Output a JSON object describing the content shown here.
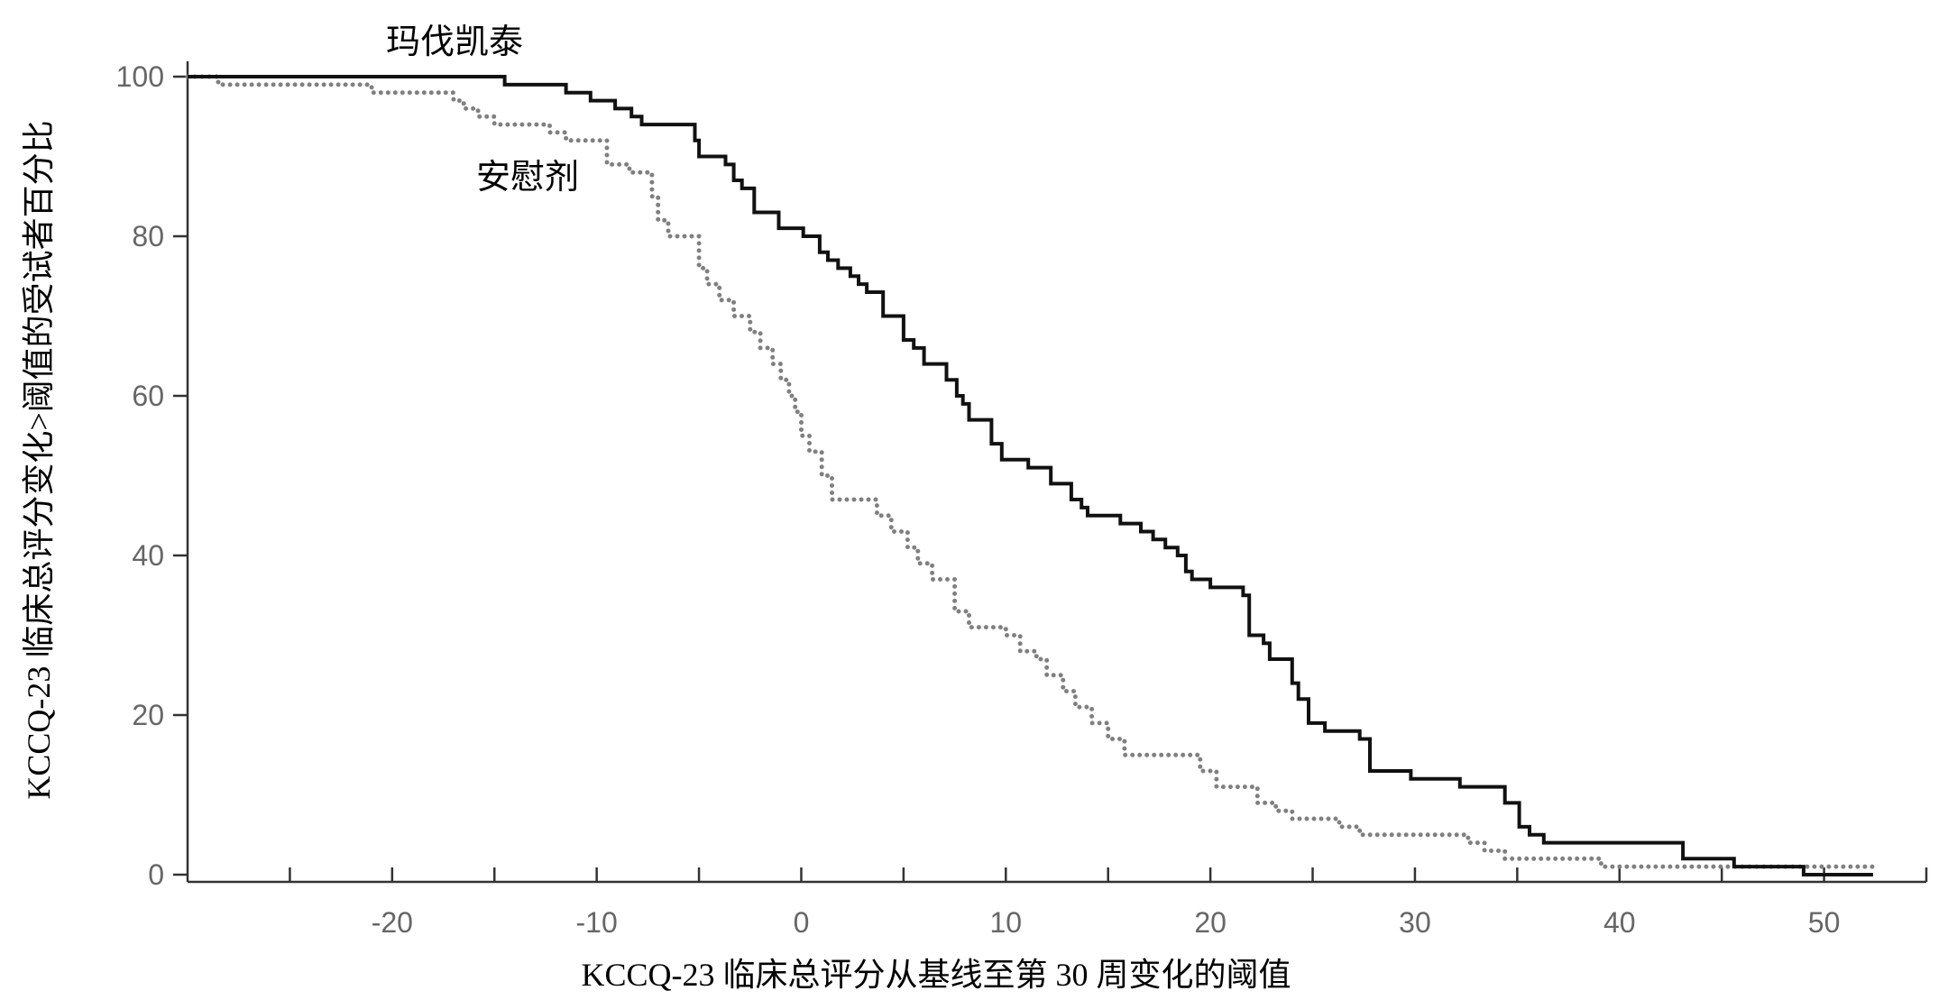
{
  "chart_data": {
    "type": "line",
    "step": true,
    "title": "",
    "xlabel": "KCCQ-23 临床总评分从基线至第 30 周变化的阈值",
    "ylabel": "KCCQ-23 临床总评分变化>阈值的受试者百分比",
    "xlim": [
      -30,
      55
    ],
    "ylim": [
      0,
      100
    ],
    "x_ticks": [
      -20,
      -10,
      0,
      10,
      20,
      30,
      40,
      50
    ],
    "x_minor_ticks": [
      -25,
      -15,
      -5,
      5,
      15,
      25,
      35,
      45,
      55
    ],
    "y_ticks": [
      0,
      20,
      40,
      60,
      80,
      100
    ],
    "grid": false,
    "legend": "none",
    "series": [
      {
        "name": "玛伐凯泰",
        "style": "solid",
        "color": "#111111",
        "points": [
          [
            -30,
            100
          ],
          [
            -14.5,
            100
          ],
          [
            -14.5,
            99
          ],
          [
            -11.5,
            99
          ],
          [
            -11.5,
            98
          ],
          [
            -10.3,
            98
          ],
          [
            -10.3,
            97
          ],
          [
            -9.1,
            97
          ],
          [
            -9.1,
            96
          ],
          [
            -8.3,
            96
          ],
          [
            -8.3,
            95
          ],
          [
            -7.8,
            95
          ],
          [
            -7.8,
            94
          ],
          [
            -5.2,
            94
          ],
          [
            -5.2,
            92
          ],
          [
            -5.0,
            92
          ],
          [
            -5.0,
            90
          ],
          [
            -3.7,
            90
          ],
          [
            -3.7,
            89
          ],
          [
            -3.3,
            89
          ],
          [
            -3.3,
            87
          ],
          [
            -2.9,
            87
          ],
          [
            -2.9,
            86
          ],
          [
            -2.3,
            86
          ],
          [
            -2.3,
            83
          ],
          [
            -1.1,
            83
          ],
          [
            -1.1,
            81
          ],
          [
            0.1,
            81
          ],
          [
            0.1,
            80
          ],
          [
            0.9,
            80
          ],
          [
            0.9,
            78
          ],
          [
            1.3,
            78
          ],
          [
            1.3,
            77
          ],
          [
            1.8,
            77
          ],
          [
            1.8,
            76
          ],
          [
            2.4,
            76
          ],
          [
            2.4,
            75
          ],
          [
            2.8,
            75
          ],
          [
            2.8,
            74
          ],
          [
            3.2,
            74
          ],
          [
            3.2,
            73
          ],
          [
            4.0,
            73
          ],
          [
            4.0,
            70
          ],
          [
            5.0,
            70
          ],
          [
            5.0,
            67
          ],
          [
            5.5,
            67
          ],
          [
            5.5,
            66
          ],
          [
            6.0,
            66
          ],
          [
            6.0,
            64
          ],
          [
            7.1,
            64
          ],
          [
            7.1,
            62
          ],
          [
            7.6,
            62
          ],
          [
            7.6,
            60
          ],
          [
            7.9,
            60
          ],
          [
            7.9,
            59
          ],
          [
            8.2,
            59
          ],
          [
            8.2,
            57
          ],
          [
            9.3,
            57
          ],
          [
            9.3,
            54
          ],
          [
            9.8,
            54
          ],
          [
            9.8,
            52
          ],
          [
            11.1,
            52
          ],
          [
            11.1,
            51
          ],
          [
            12.2,
            51
          ],
          [
            12.2,
            49
          ],
          [
            13.2,
            49
          ],
          [
            13.2,
            47
          ],
          [
            13.7,
            47
          ],
          [
            13.7,
            46
          ],
          [
            14.0,
            46
          ],
          [
            14.0,
            45
          ],
          [
            15.6,
            45
          ],
          [
            15.6,
            44
          ],
          [
            16.6,
            44
          ],
          [
            16.6,
            43
          ],
          [
            17.2,
            43
          ],
          [
            17.2,
            42
          ],
          [
            17.8,
            42
          ],
          [
            17.8,
            41
          ],
          [
            18.4,
            41
          ],
          [
            18.4,
            40
          ],
          [
            18.8,
            40
          ],
          [
            18.8,
            38
          ],
          [
            19.1,
            38
          ],
          [
            19.1,
            37
          ],
          [
            20.0,
            37
          ],
          [
            20.0,
            36
          ],
          [
            21.6,
            36
          ],
          [
            21.6,
            35
          ],
          [
            21.9,
            35
          ],
          [
            21.9,
            30
          ],
          [
            22.6,
            30
          ],
          [
            22.6,
            29
          ],
          [
            22.9,
            29
          ],
          [
            22.9,
            27
          ],
          [
            24.0,
            27
          ],
          [
            24.0,
            24
          ],
          [
            24.3,
            24
          ],
          [
            24.3,
            22
          ],
          [
            24.8,
            22
          ],
          [
            24.8,
            19
          ],
          [
            25.6,
            19
          ],
          [
            25.6,
            18
          ],
          [
            27.3,
            18
          ],
          [
            27.3,
            17
          ],
          [
            27.8,
            17
          ],
          [
            27.8,
            13
          ],
          [
            29.8,
            13
          ],
          [
            29.8,
            12
          ],
          [
            32.2,
            12
          ],
          [
            32.2,
            11
          ],
          [
            34.4,
            11
          ],
          [
            34.4,
            9
          ],
          [
            35.1,
            9
          ],
          [
            35.1,
            6
          ],
          [
            35.6,
            6
          ],
          [
            35.6,
            5
          ],
          [
            36.3,
            5
          ],
          [
            36.3,
            4
          ],
          [
            43.1,
            4
          ],
          [
            43.1,
            2
          ],
          [
            45.6,
            2
          ],
          [
            45.6,
            1
          ],
          [
            49.0,
            1
          ],
          [
            49.0,
            0
          ],
          [
            52.4,
            0
          ]
        ]
      },
      {
        "name": "安慰剂",
        "style": "dotted",
        "color": "#808080",
        "points": [
          [
            -30,
            100
          ],
          [
            -28.5,
            100
          ],
          [
            -28.5,
            99
          ],
          [
            -21.0,
            99
          ],
          [
            -21.0,
            98
          ],
          [
            -17.0,
            98
          ],
          [
            -17.0,
            97
          ],
          [
            -16.5,
            97
          ],
          [
            -16.5,
            96
          ],
          [
            -15.8,
            96
          ],
          [
            -15.8,
            95
          ],
          [
            -15.0,
            95
          ],
          [
            -15.0,
            94
          ],
          [
            -12.3,
            94
          ],
          [
            -12.3,
            93
          ],
          [
            -11.5,
            93
          ],
          [
            -11.5,
            92
          ],
          [
            -9.5,
            92
          ],
          [
            -9.5,
            89
          ],
          [
            -8.4,
            89
          ],
          [
            -8.4,
            88
          ],
          [
            -7.3,
            88
          ],
          [
            -7.3,
            85
          ],
          [
            -7.0,
            85
          ],
          [
            -7.0,
            82
          ],
          [
            -6.5,
            82
          ],
          [
            -6.5,
            80
          ],
          [
            -5.0,
            80
          ],
          [
            -5.0,
            76
          ],
          [
            -4.6,
            76
          ],
          [
            -4.6,
            74
          ],
          [
            -4.0,
            74
          ],
          [
            -4.0,
            72
          ],
          [
            -3.3,
            72
          ],
          [
            -3.3,
            70
          ],
          [
            -2.5,
            70
          ],
          [
            -2.5,
            68
          ],
          [
            -2.0,
            68
          ],
          [
            -2.0,
            66
          ],
          [
            -1.4,
            66
          ],
          [
            -1.4,
            64
          ],
          [
            -1.0,
            64
          ],
          [
            -1.0,
            62
          ],
          [
            -0.6,
            62
          ],
          [
            -0.6,
            60
          ],
          [
            -0.3,
            60
          ],
          [
            -0.3,
            58
          ],
          [
            0.0,
            58
          ],
          [
            0.0,
            55
          ],
          [
            0.4,
            55
          ],
          [
            0.4,
            53
          ],
          [
            1.0,
            53
          ],
          [
            1.0,
            50
          ],
          [
            1.5,
            50
          ],
          [
            1.5,
            47
          ],
          [
            3.7,
            47
          ],
          [
            3.7,
            45
          ],
          [
            4.4,
            45
          ],
          [
            4.4,
            43
          ],
          [
            5.2,
            43
          ],
          [
            5.2,
            41
          ],
          [
            5.7,
            41
          ],
          [
            5.7,
            39
          ],
          [
            6.4,
            39
          ],
          [
            6.4,
            37
          ],
          [
            7.5,
            37
          ],
          [
            7.5,
            33
          ],
          [
            8.2,
            33
          ],
          [
            8.2,
            31
          ],
          [
            10.0,
            31
          ],
          [
            10.0,
            30
          ],
          [
            10.7,
            30
          ],
          [
            10.7,
            28
          ],
          [
            11.5,
            28
          ],
          [
            11.5,
            27
          ],
          [
            12.0,
            27
          ],
          [
            12.0,
            25
          ],
          [
            12.8,
            25
          ],
          [
            12.8,
            23
          ],
          [
            13.4,
            23
          ],
          [
            13.4,
            21
          ],
          [
            14.2,
            21
          ],
          [
            14.2,
            19
          ],
          [
            15.0,
            19
          ],
          [
            15.0,
            17
          ],
          [
            15.8,
            17
          ],
          [
            15.8,
            15
          ],
          [
            19.5,
            15
          ],
          [
            19.5,
            13
          ],
          [
            20.3,
            13
          ],
          [
            20.3,
            11
          ],
          [
            22.3,
            11
          ],
          [
            22.3,
            9
          ],
          [
            23.2,
            9
          ],
          [
            23.2,
            8
          ],
          [
            24.0,
            8
          ],
          [
            24.0,
            7
          ],
          [
            26.3,
            7
          ],
          [
            26.3,
            6
          ],
          [
            27.3,
            6
          ],
          [
            27.3,
            5
          ],
          [
            32.6,
            5
          ],
          [
            32.6,
            4
          ],
          [
            33.4,
            4
          ],
          [
            33.4,
            3
          ],
          [
            34.4,
            3
          ],
          [
            34.4,
            2
          ],
          [
            39.1,
            2
          ],
          [
            39.1,
            1
          ],
          [
            52.7,
            1
          ]
        ]
      }
    ],
    "annotations": [
      {
        "text": "玛伐凯泰",
        "series": 0
      },
      {
        "text": "安慰剂",
        "series": 1
      }
    ]
  }
}
